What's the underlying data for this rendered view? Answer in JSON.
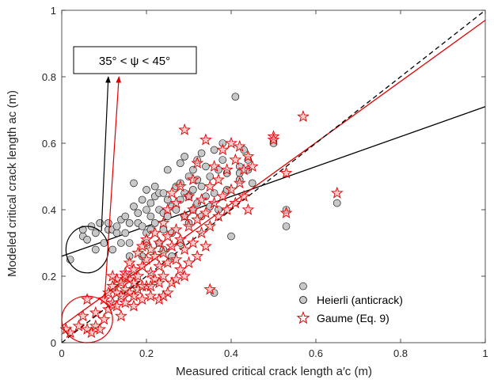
{
  "chart_data": {
    "type": "scatter",
    "title": "",
    "xlabel": "Measured critical crack length a′c (m)",
    "ylabel": "Modeled critical crack length ac (m)",
    "xlim": [
      0,
      1
    ],
    "ylim": [
      0,
      1
    ],
    "xticks": [
      "0",
      "0.2",
      "0.4",
      "0.6",
      "0.8",
      "1"
    ],
    "yticks": [
      "0",
      "0.2",
      "0.4",
      "0.6",
      "0.8",
      "1"
    ],
    "grid": false,
    "legend_position": "bottom-right",
    "annotation": "35° < ψ < 45°",
    "colors": {
      "heierli_fill": "#c8c8c8",
      "heierli_edge": "#000000",
      "gaume": "#e00000",
      "gaume_fill": "#f4a0a0"
    },
    "series": [
      {
        "name": "Heierli (anticrack)",
        "marker": "circle",
        "points": [
          [
            0.02,
            0.25
          ],
          [
            0.05,
            0.32
          ],
          [
            0.05,
            0.34
          ],
          [
            0.06,
            0.31
          ],
          [
            0.07,
            0.35
          ],
          [
            0.08,
            0.33
          ],
          [
            0.08,
            0.28
          ],
          [
            0.09,
            0.36
          ],
          [
            0.1,
            0.3
          ],
          [
            0.11,
            0.34
          ],
          [
            0.12,
            0.34
          ],
          [
            0.13,
            0.33
          ],
          [
            0.13,
            0.35
          ],
          [
            0.14,
            0.37
          ],
          [
            0.15,
            0.33
          ],
          [
            0.15,
            0.38
          ],
          [
            0.16,
            0.36
          ],
          [
            0.16,
            0.3
          ],
          [
            0.17,
            0.41
          ],
          [
            0.17,
            0.48
          ],
          [
            0.18,
            0.39
          ],
          [
            0.18,
            0.36
          ],
          [
            0.19,
            0.43
          ],
          [
            0.19,
            0.35
          ],
          [
            0.2,
            0.46
          ],
          [
            0.2,
            0.4
          ],
          [
            0.2,
            0.33
          ],
          [
            0.21,
            0.42
          ],
          [
            0.21,
            0.38
          ],
          [
            0.22,
            0.47
          ],
          [
            0.22,
            0.44
          ],
          [
            0.22,
            0.36
          ],
          [
            0.23,
            0.45
          ],
          [
            0.23,
            0.4
          ],
          [
            0.23,
            0.3
          ],
          [
            0.24,
            0.45
          ],
          [
            0.24,
            0.39
          ],
          [
            0.24,
            0.34
          ],
          [
            0.25,
            0.52
          ],
          [
            0.25,
            0.43
          ],
          [
            0.25,
            0.38
          ],
          [
            0.26,
            0.41
          ],
          [
            0.26,
            0.33
          ],
          [
            0.27,
            0.47
          ],
          [
            0.27,
            0.4
          ],
          [
            0.28,
            0.54
          ],
          [
            0.28,
            0.48
          ],
          [
            0.28,
            0.43
          ],
          [
            0.29,
            0.56
          ],
          [
            0.29,
            0.45
          ],
          [
            0.29,
            0.38
          ],
          [
            0.3,
            0.5
          ],
          [
            0.3,
            0.44
          ],
          [
            0.3,
            0.36
          ],
          [
            0.31,
            0.52
          ],
          [
            0.31,
            0.46
          ],
          [
            0.31,
            0.4
          ],
          [
            0.32,
            0.55
          ],
          [
            0.32,
            0.49
          ],
          [
            0.32,
            0.42
          ],
          [
            0.33,
            0.57
          ],
          [
            0.33,
            0.47
          ],
          [
            0.33,
            0.38
          ],
          [
            0.34,
            0.53
          ],
          [
            0.34,
            0.44
          ],
          [
            0.35,
            0.5
          ],
          [
            0.35,
            0.41
          ],
          [
            0.36,
            0.58
          ],
          [
            0.36,
            0.45
          ],
          [
            0.37,
            0.52
          ],
          [
            0.37,
            0.4
          ],
          [
            0.38,
            0.55
          ],
          [
            0.38,
            0.6
          ],
          [
            0.39,
            0.51
          ],
          [
            0.39,
            0.46
          ],
          [
            0.4,
            0.32
          ],
          [
            0.41,
            0.74
          ],
          [
            0.42,
            0.51
          ],
          [
            0.42,
            0.53
          ],
          [
            0.42,
            0.49
          ],
          [
            0.43,
            0.58
          ],
          [
            0.44,
            0.55
          ],
          [
            0.44,
            0.52
          ],
          [
            0.45,
            0.48
          ],
          [
            0.36,
            0.15
          ],
          [
            0.5,
            0.6
          ],
          [
            0.53,
            0.35
          ],
          [
            0.53,
            0.4
          ],
          [
            0.57,
            0.17
          ],
          [
            0.65,
            0.42
          ],
          [
            0.12,
            0.28
          ],
          [
            0.14,
            0.3
          ],
          [
            0.16,
            0.26
          ],
          [
            0.2,
            0.3
          ],
          [
            0.24,
            0.28
          ],
          [
            0.26,
            0.26
          ],
          [
            0.28,
            0.3
          ],
          [
            0.19,
            0.26
          ],
          [
            0.11,
            0.36
          ],
          [
            0.21,
            0.34
          ]
        ]
      },
      {
        "name": "Gaume (Eq. 9)",
        "marker": "star",
        "points": [
          [
            0.01,
            0.04
          ],
          [
            0.02,
            0.03
          ],
          [
            0.04,
            0.05
          ],
          [
            0.05,
            0.08
          ],
          [
            0.06,
            0.04
          ],
          [
            0.06,
            0.13
          ],
          [
            0.07,
            0.03
          ],
          [
            0.08,
            0.09
          ],
          [
            0.08,
            0.05
          ],
          [
            0.09,
            0.04
          ],
          [
            0.1,
            0.07
          ],
          [
            0.1,
            0.13
          ],
          [
            0.11,
            0.1
          ],
          [
            0.11,
            0.15
          ],
          [
            0.12,
            0.12
          ],
          [
            0.12,
            0.17
          ],
          [
            0.13,
            0.11
          ],
          [
            0.13,
            0.15
          ],
          [
            0.13,
            0.19
          ],
          [
            0.14,
            0.14
          ],
          [
            0.14,
            0.18
          ],
          [
            0.15,
            0.12
          ],
          [
            0.15,
            0.16
          ],
          [
            0.15,
            0.21
          ],
          [
            0.16,
            0.15
          ],
          [
            0.16,
            0.19
          ],
          [
            0.16,
            0.24
          ],
          [
            0.17,
            0.14
          ],
          [
            0.17,
            0.18
          ],
          [
            0.17,
            0.22
          ],
          [
            0.18,
            0.16
          ],
          [
            0.18,
            0.2
          ],
          [
            0.18,
            0.27
          ],
          [
            0.19,
            0.13
          ],
          [
            0.19,
            0.23
          ],
          [
            0.19,
            0.29
          ],
          [
            0.2,
            0.17
          ],
          [
            0.2,
            0.25
          ],
          [
            0.2,
            0.31
          ],
          [
            0.21,
            0.14
          ],
          [
            0.21,
            0.21
          ],
          [
            0.21,
            0.28
          ],
          [
            0.22,
            0.19
          ],
          [
            0.22,
            0.26
          ],
          [
            0.22,
            0.33
          ],
          [
            0.23,
            0.13
          ],
          [
            0.23,
            0.23
          ],
          [
            0.23,
            0.3
          ],
          [
            0.24,
            0.2
          ],
          [
            0.24,
            0.27
          ],
          [
            0.24,
            0.36
          ],
          [
            0.25,
            0.24
          ],
          [
            0.25,
            0.32
          ],
          [
            0.25,
            0.4
          ],
          [
            0.26,
            0.18
          ],
          [
            0.26,
            0.29
          ],
          [
            0.26,
            0.45
          ],
          [
            0.27,
            0.25
          ],
          [
            0.27,
            0.34
          ],
          [
            0.27,
            0.42
          ],
          [
            0.28,
            0.22
          ],
          [
            0.28,
            0.31
          ],
          [
            0.28,
            0.47
          ],
          [
            0.29,
            0.28
          ],
          [
            0.29,
            0.38
          ],
          [
            0.29,
            0.64
          ],
          [
            0.3,
            0.24
          ],
          [
            0.3,
            0.35
          ],
          [
            0.3,
            0.44
          ],
          [
            0.31,
            0.3
          ],
          [
            0.31,
            0.4
          ],
          [
            0.31,
            0.49
          ],
          [
            0.32,
            0.26
          ],
          [
            0.32,
            0.37
          ],
          [
            0.32,
            0.54
          ],
          [
            0.33,
            0.33
          ],
          [
            0.33,
            0.43
          ],
          [
            0.34,
            0.29
          ],
          [
            0.34,
            0.39
          ],
          [
            0.34,
            0.61
          ],
          [
            0.35,
            0.35
          ],
          [
            0.35,
            0.47
          ],
          [
            0.36,
            0.42
          ],
          [
            0.36,
            0.53
          ],
          [
            0.37,
            0.38
          ],
          [
            0.37,
            0.49
          ],
          [
            0.38,
            0.44
          ],
          [
            0.38,
            0.58
          ],
          [
            0.39,
            0.4
          ],
          [
            0.39,
            0.52
          ],
          [
            0.4,
            0.46
          ],
          [
            0.4,
            0.6
          ],
          [
            0.41,
            0.42
          ],
          [
            0.41,
            0.55
          ],
          [
            0.42,
            0.48
          ],
          [
            0.42,
            0.59
          ],
          [
            0.43,
            0.44
          ],
          [
            0.43,
            0.52
          ],
          [
            0.44,
            0.56
          ],
          [
            0.44,
            0.4
          ],
          [
            0.45,
            0.53
          ],
          [
            0.35,
            0.16
          ],
          [
            0.5,
            0.62
          ],
          [
            0.5,
            0.61
          ],
          [
            0.53,
            0.39
          ],
          [
            0.53,
            0.51
          ],
          [
            0.57,
            0.68
          ],
          [
            0.65,
            0.45
          ],
          [
            0.14,
            0.08
          ],
          [
            0.15,
            0.2
          ],
          [
            0.17,
            0.11
          ],
          [
            0.19,
            0.17
          ],
          [
            0.21,
            0.17
          ],
          [
            0.23,
            0.18
          ],
          [
            0.25,
            0.15
          ],
          [
            0.27,
            0.19
          ],
          [
            0.29,
            0.2
          ],
          [
            0.24,
            0.14
          ],
          [
            0.12,
            0.2
          ]
        ]
      }
    ],
    "fit_lines": [
      {
        "name": "Heierli fit",
        "x": [
          0,
          1
        ],
        "y": [
          0.26,
          0.71
        ],
        "color": "#000000",
        "dash": "solid"
      },
      {
        "name": "Gaume fit",
        "x": [
          0,
          1
        ],
        "y": [
          0.05,
          0.97
        ],
        "color": "#e00000",
        "dash": "solid"
      },
      {
        "name": "1:1",
        "x": [
          0,
          1
        ],
        "y": [
          0,
          1
        ],
        "color": "#000000",
        "dash": "dashed"
      }
    ],
    "ellipses": [
      {
        "cx": 0.06,
        "cy": 0.28,
        "rx": 0.05,
        "ry": 0.07,
        "color": "#000000",
        "arrow_to": [
          0.11,
          0.8
        ]
      },
      {
        "cx": 0.06,
        "cy": 0.07,
        "rx": 0.06,
        "ry": 0.07,
        "color": "#e00000",
        "arrow_to": [
          0.135,
          0.8
        ]
      }
    ]
  }
}
